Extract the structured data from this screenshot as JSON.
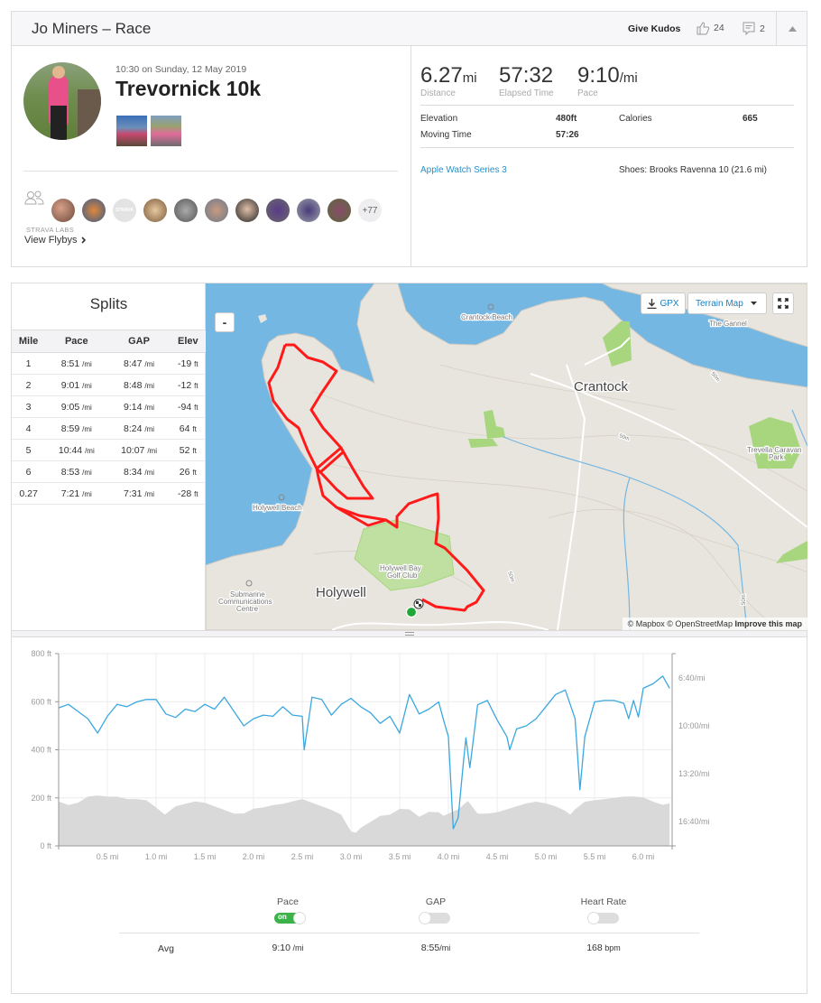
{
  "header": {
    "title": "Jo Miners – Race",
    "give_kudos": "Give Kudos",
    "kudos_count": "24",
    "comment_count": "2"
  },
  "activity": {
    "datetime": "10:30 on Sunday, 12 May 2019",
    "name": "Trevornick 10k"
  },
  "stats": {
    "distance": {
      "value": "6.27",
      "unit": "mi",
      "label": "Distance"
    },
    "elapsed": {
      "value": "57:32",
      "label": "Elapsed Time"
    },
    "pace": {
      "value": "9:10",
      "unit": "/mi",
      "label": "Pace"
    },
    "elevation": {
      "label": "Elevation",
      "value": "480ft"
    },
    "calories": {
      "label": "Calories",
      "value": "665"
    },
    "moving_time": {
      "label": "Moving Time",
      "value": "57:26"
    },
    "device": "Apple Watch Series 3",
    "shoes": "Shoes: Brooks Ravenna 10 (21.6 mi)"
  },
  "group": {
    "more_count": "+77",
    "labs_label": "STRAVA LABS",
    "flybys": "View Flybys",
    "avatar_badge": "STRAVA"
  },
  "splits": {
    "title": "Splits",
    "headers": [
      "Mile",
      "Pace",
      "GAP",
      "Elev"
    ],
    "rows": [
      {
        "mile": "1",
        "pace": "8:51",
        "gap": "8:47",
        "elev": "-19"
      },
      {
        "mile": "2",
        "pace": "9:01",
        "gap": "8:48",
        "elev": "-12"
      },
      {
        "mile": "3",
        "pace": "9:05",
        "gap": "9:14",
        "elev": "-94"
      },
      {
        "mile": "4",
        "pace": "8:59",
        "gap": "8:24",
        "elev": "64"
      },
      {
        "mile": "5",
        "pace": "10:44",
        "gap": "10:07",
        "elev": "52"
      },
      {
        "mile": "6",
        "pace": "8:53",
        "gap": "8:34",
        "elev": "26"
      },
      {
        "mile": "0.27",
        "pace": "7:21",
        "gap": "7:31",
        "elev": "-28"
      }
    ],
    "pace_unit": "/mi",
    "elev_unit": "ft"
  },
  "map": {
    "zoom_out": "-",
    "gpx": "GPX",
    "map_type": "Terrain Map",
    "attribution": "© Mapbox © OpenStreetMap",
    "improve": "Improve this map",
    "labels": {
      "crantock_beach": "Crantock Beach",
      "gannel": "The Gannel",
      "crantock": "Crantock",
      "trevella1": "Trevella Caravan",
      "trevella2": "Park",
      "holywell_beach": "Holywell Beach",
      "golf1": "Holywell Bay",
      "golf2": "Golf Club",
      "holywell": "Holywell",
      "sub1": "Submarine",
      "sub2": "Communications",
      "sub3": "Centre",
      "contour": "50m"
    },
    "colors": {
      "sea": "#74b7e2",
      "land": "#e8e5de",
      "park": "#a8d67f",
      "route": "#ff1a1a",
      "start": "#1ea838"
    }
  },
  "chart_data": {
    "type": "area+line",
    "x_unit": "mi",
    "xlim": [
      0,
      6.27
    ],
    "x_ticks": [
      "0.5 mi",
      "1.0 mi",
      "1.5 mi",
      "2.0 mi",
      "2.5 mi",
      "3.0 mi",
      "3.5 mi",
      "4.0 mi",
      "4.5 mi",
      "5.0 mi",
      "5.5 mi",
      "6.0 mi"
    ],
    "y_left_ticks": [
      "0 ft",
      "200 ft",
      "400 ft",
      "600 ft",
      "800 ft"
    ],
    "y_left_lim": [
      0,
      800
    ],
    "y_right_ticks": [
      "6:40/mi",
      "10:00/mi",
      "13:20/mi",
      "16:40/mi"
    ],
    "grid": true,
    "series": [
      {
        "name": "Elevation",
        "type": "area",
        "color": "#d9d9d9",
        "x": [
          0,
          0.1,
          0.2,
          0.3,
          0.4,
          0.5,
          0.6,
          0.7,
          0.8,
          0.9,
          1.0,
          1.09,
          1.2,
          1.3,
          1.4,
          1.5,
          1.6,
          1.7,
          1.8,
          1.9,
          2.0,
          2.1,
          2.2,
          2.3,
          2.4,
          2.5,
          2.6,
          2.7,
          2.8,
          2.9,
          3.0,
          3.05,
          3.1,
          3.2,
          3.3,
          3.4,
          3.5,
          3.6,
          3.7,
          3.8,
          3.9,
          3.95,
          4.0,
          4.1,
          4.2,
          4.3,
          4.4,
          4.5,
          4.6,
          4.7,
          4.8,
          4.9,
          5.0,
          5.1,
          5.2,
          5.25,
          5.3,
          5.4,
          5.5,
          5.6,
          5.7,
          5.8,
          5.9,
          6.0,
          6.1,
          6.2,
          6.27
        ],
        "y": [
          185,
          170,
          180,
          205,
          210,
          205,
          205,
          195,
          195,
          190,
          160,
          130,
          165,
          175,
          185,
          180,
          165,
          150,
          135,
          135,
          155,
          160,
          170,
          175,
          185,
          195,
          180,
          165,
          150,
          130,
          60,
          55,
          75,
          100,
          125,
          130,
          154,
          152,
          121,
          142,
          140,
          125,
          134,
          152,
          187,
          134,
          134,
          140,
          152,
          165,
          177,
          184,
          177,
          165,
          146,
          130,
          152,
          184,
          190,
          194,
          200,
          205,
          206,
          202,
          184,
          171,
          177
        ]
      },
      {
        "name": "Pace",
        "type": "line",
        "color": "#3aa7e0",
        "x": [
          0,
          0.1,
          0.2,
          0.3,
          0.4,
          0.5,
          0.6,
          0.7,
          0.8,
          0.9,
          1.0,
          1.1,
          1.2,
          1.3,
          1.4,
          1.5,
          1.6,
          1.7,
          1.8,
          1.9,
          2.0,
          2.1,
          2.2,
          2.3,
          2.4,
          2.5,
          2.52,
          2.6,
          2.7,
          2.8,
          2.9,
          3.0,
          3.1,
          3.2,
          3.3,
          3.4,
          3.5,
          3.6,
          3.7,
          3.8,
          3.9,
          3.95,
          4.0,
          4.05,
          4.1,
          4.15,
          4.18,
          4.22,
          4.3,
          4.4,
          4.5,
          4.6,
          4.63,
          4.7,
          4.8,
          4.9,
          5.0,
          5.1,
          5.2,
          5.3,
          5.35,
          5.4,
          5.5,
          5.6,
          5.7,
          5.8,
          5.85,
          5.9,
          5.95,
          6.0,
          6.1,
          6.2,
          6.27
        ],
        "y": [
          "8:45",
          "8:30",
          "9:00",
          "9:30",
          "10:30",
          "9:20",
          "8:30",
          "8:40",
          "8:20",
          "8:10",
          "8:10",
          "9:10",
          "9:25",
          "8:50",
          "9:00",
          "8:30",
          "8:50",
          "8:00",
          "9:00",
          "10:00",
          "9:30",
          "9:15",
          "9:20",
          "8:40",
          "9:15",
          "9:20",
          "11:40",
          "8:00",
          "8:10",
          "9:15",
          "8:30",
          "8:05",
          "8:40",
          "9:05",
          "9:50",
          "9:20",
          "10:30",
          "7:49",
          "9:10",
          "8:50",
          "8:20",
          "9:35",
          "10:45",
          "17:10",
          "16:25",
          "12:50",
          "10:50",
          "12:55",
          "8:32",
          "8:14",
          "9:35",
          "10:45",
          "11:40",
          "10:13",
          "10:00",
          "9:30",
          "8:40",
          "7:49",
          "7:30",
          "9:30",
          "14:27",
          "10:45",
          "8:20",
          "8:14",
          "8:14",
          "8:26",
          "9:30",
          "8:14",
          "9:23",
          "7:23",
          "7:04",
          "6:32",
          "7:23"
        ]
      }
    ]
  },
  "controls": {
    "pace": {
      "label": "Pace",
      "state": "on",
      "avg": "9:10",
      "unit": " /mi"
    },
    "gap": {
      "label": "GAP",
      "state": "off",
      "avg": "8:55",
      "unit": "/mi"
    },
    "hr": {
      "label": "Heart Rate",
      "state": "off",
      "avg": "168",
      "unit": " bpm"
    },
    "avg_label": "Avg"
  }
}
